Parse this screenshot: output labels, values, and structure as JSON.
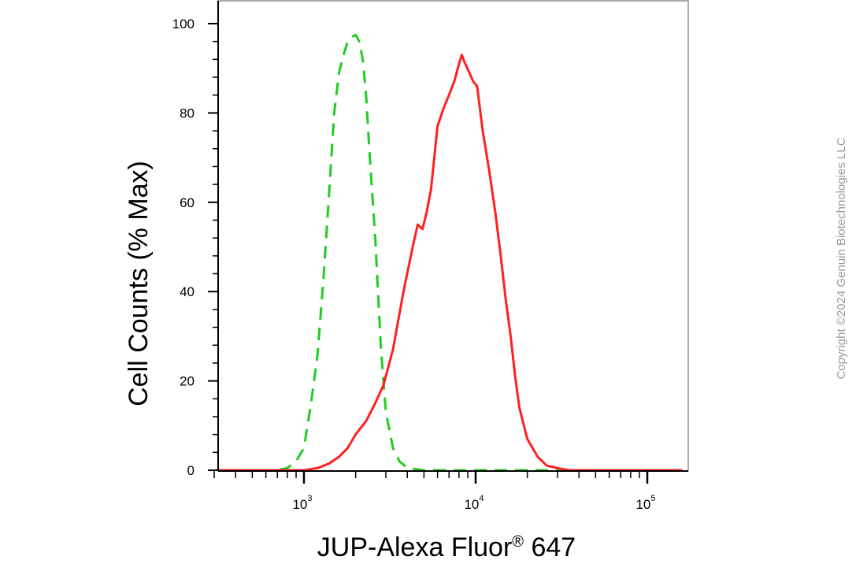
{
  "chart_data": {
    "type": "line",
    "xlabel": "JUP-Alexa Fluor",
    "xlabel_sup": "®",
    "xlabel_tail": " 647",
    "ylabel": "Cell Counts (% Max)",
    "x_scale": "log",
    "xlim": [
      300,
      160000
    ],
    "ylim": [
      0,
      100
    ],
    "grid": false,
    "y_ticks": [
      {
        "value": 0,
        "label": "0"
      },
      {
        "value": 20,
        "label": "20"
      },
      {
        "value": 40,
        "label": "40"
      },
      {
        "value": 60,
        "label": "60"
      },
      {
        "value": 80,
        "label": "80"
      },
      {
        "value": 100,
        "label": "100"
      }
    ],
    "x_ticks": [
      {
        "value": 1000,
        "base": "10",
        "exp": "3"
      },
      {
        "value": 10000,
        "base": "10",
        "exp": "4"
      },
      {
        "value": 100000,
        "base": "10",
        "exp": "5"
      }
    ],
    "series": [
      {
        "color": "#22cc22",
        "dash": "dashed",
        "x": [
          300,
          700,
          800,
          900,
          1000,
          1100,
          1200,
          1300,
          1400,
          1500,
          1600,
          1700,
          1800,
          1900,
          2000,
          2100,
          2200,
          2300,
          2400,
          2600,
          2800,
          3000,
          3300,
          3600,
          4000,
          5000,
          7000,
          10000,
          20000,
          40000,
          160000
        ],
        "y": [
          0,
          0,
          0.5,
          2,
          5,
          15,
          26,
          43,
          62,
          80,
          89,
          93,
          96,
          97,
          97.5,
          96,
          92,
          84,
          72,
          52,
          28,
          13,
          5,
          2,
          0.5,
          0,
          0,
          0,
          0,
          0,
          0
        ]
      },
      {
        "color": "#ff2020",
        "dash": "solid",
        "x": [
          300,
          1000,
          1200,
          1400,
          1600,
          1800,
          2000,
          2300,
          2600,
          2900,
          3300,
          3800,
          4300,
          4600,
          4900,
          5200,
          5500,
          6000,
          6500,
          7000,
          7500,
          8000,
          8300,
          8700,
          9200,
          9700,
          10200,
          11000,
          12000,
          13000,
          14000,
          15000,
          16000,
          17000,
          18000,
          20000,
          23000,
          26000,
          30000,
          35000,
          160000
        ],
        "y": [
          0,
          0,
          0.5,
          1.5,
          3,
          5,
          8,
          11,
          15,
          19,
          27,
          40,
          50,
          55,
          54,
          58,
          63,
          77,
          81,
          84,
          87,
          91,
          93,
          91,
          89,
          87,
          86,
          76,
          67,
          58,
          48,
          38,
          30,
          21,
          14,
          7,
          3,
          1,
          0.5,
          0,
          0
        ]
      }
    ]
  },
  "copyright": "Copyright ©2024 Genuin Biotechnologies LLC"
}
